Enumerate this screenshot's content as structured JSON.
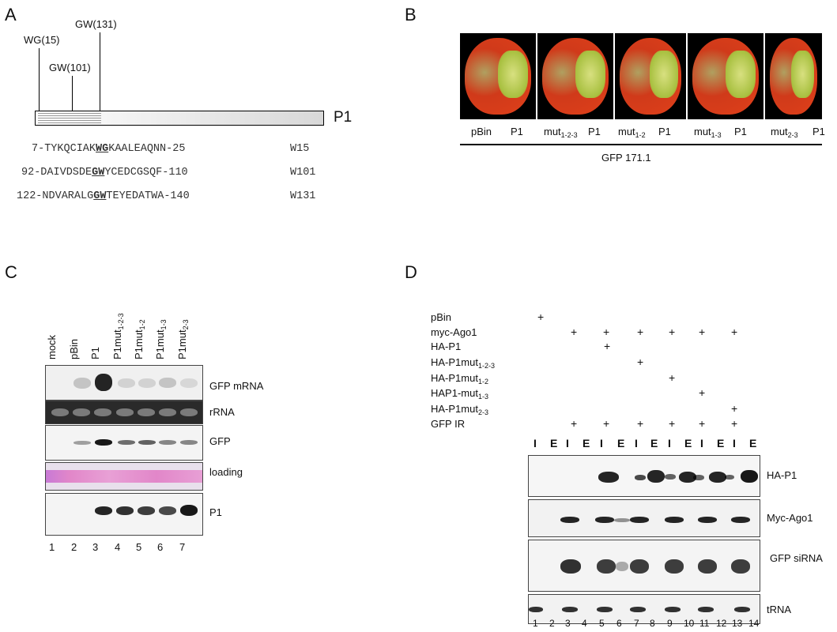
{
  "panels": {
    "A": {
      "letter": "A",
      "sites": [
        "WG(15)",
        "GW(101)",
        "GW(131)"
      ],
      "protein": "P1",
      "sequences": [
        {
          "pre": "7-TYKQCIAK",
          "motif": "WG",
          "post": "KAALEAQNN-25",
          "label": "W15"
        },
        {
          "pre": "92-DAIVDSDE",
          "motif": "GW",
          "post": "YCEDCGSQF-110",
          "label": "W101"
        },
        {
          "pre": "122-NDVARALG",
          "motif": "GW",
          "post": "TEYEDATWA-140",
          "label": "W131"
        }
      ]
    },
    "B": {
      "letter": "B",
      "leaf_labels": [
        {
          "left": "pBin",
          "right": "P1"
        },
        {
          "left": "mut",
          "sub": "1-2-3",
          "right": "P1"
        },
        {
          "left": "mut",
          "sub": "1-2",
          "right": "P1"
        },
        {
          "left": "mut",
          "sub": "1-3",
          "right": "P1"
        },
        {
          "left": "mut",
          "sub": "2-3",
          "right": "P1"
        }
      ],
      "caption": "GFP 171.1"
    },
    "C": {
      "letter": "C",
      "lanes": [
        {
          "base": "mock",
          "sub": ""
        },
        {
          "base": "pBin",
          "sub": ""
        },
        {
          "base": "P1",
          "sub": ""
        },
        {
          "base": "P1mut",
          "sub": "1-2-3"
        },
        {
          "base": "P1mut",
          "sub": "1-2"
        },
        {
          "base": "P1mut",
          "sub": "1-3"
        },
        {
          "base": "P1mut",
          "sub": "2-3"
        }
      ],
      "blots": [
        "GFP mRNA",
        "rRNA",
        "GFP",
        "loading",
        "P1"
      ],
      "lane_numbers": [
        "1",
        "2",
        "3",
        "4",
        "5",
        "6",
        "7"
      ]
    },
    "D": {
      "letter": "D",
      "conditions": [
        {
          "base": "pBin",
          "sub": ""
        },
        {
          "base": "myc-Ago1",
          "sub": ""
        },
        {
          "base": "HA-P1",
          "sub": ""
        },
        {
          "base": "HA-P1mut",
          "sub": "1-2-3"
        },
        {
          "base": "HA-P1mut",
          "sub": "1-2"
        },
        {
          "base": "HAP1-mut",
          "sub": "1-3"
        },
        {
          "base": "HA-P1mut",
          "sub": "2-3"
        },
        {
          "base": "GFP IR",
          "sub": ""
        }
      ],
      "plus": "+",
      "fractions": [
        "I",
        "E",
        "I",
        "E",
        "I",
        "E",
        "I",
        "E",
        "I",
        "E",
        "I",
        "E",
        "I",
        "E"
      ],
      "blots": [
        "HA-P1",
        "Myc-Ago1",
        "GFP siRNA",
        "tRNA"
      ],
      "lane_numbers": [
        "1",
        "2",
        "3",
        "4",
        "5",
        "6",
        "7",
        "8",
        "9",
        "10",
        "11",
        "12",
        "13",
        "14"
      ]
    }
  }
}
